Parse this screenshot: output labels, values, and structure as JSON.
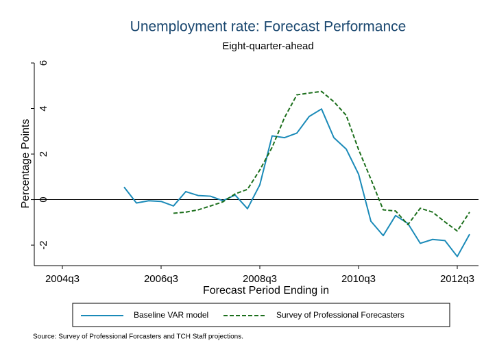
{
  "chart_data": {
    "type": "line",
    "title": "Unemployment rate: Forecast Performance",
    "subtitle": "Eight-quarter-ahead",
    "y_label": "Percentage Points",
    "x_label": "Forecast Period Ending in",
    "source": "Source: Survey of Professional Forcasters and TCH Staff projections.",
    "categories": [
      "2004q3",
      null,
      null,
      null,
      null,
      null,
      null,
      null,
      "2006q3",
      null,
      null,
      null,
      null,
      null,
      null,
      null,
      "2008q3",
      null,
      null,
      null,
      null,
      null,
      null,
      null,
      "2010q3",
      null,
      null,
      null,
      null,
      null,
      null,
      null,
      "2012q3",
      null
    ],
    "series": [
      {
        "name": "Baseline VAR model",
        "color": "#1a8ab8",
        "dash": false,
        "values": [
          null,
          null,
          null,
          null,
          null,
          0.55,
          -0.15,
          -0.05,
          -0.08,
          -0.28,
          0.35,
          0.18,
          0.15,
          -0.05,
          0.2,
          -0.4,
          0.65,
          2.8,
          2.72,
          2.92,
          3.65,
          3.98,
          2.72,
          2.22,
          1.12,
          -0.95,
          -1.58,
          -0.7,
          -1.05,
          -1.92,
          -1.75,
          -1.8,
          -2.5,
          -1.52
        ]
      },
      {
        "name": "Survey of Professional Forecasters",
        "color": "#1b6e1b",
        "dash": true,
        "values": [
          null,
          null,
          null,
          null,
          null,
          null,
          null,
          null,
          null,
          -0.6,
          -0.55,
          -0.45,
          -0.28,
          -0.1,
          0.25,
          0.45,
          1.3,
          2.3,
          3.6,
          4.6,
          4.68,
          4.75,
          4.3,
          3.7,
          2.2,
          0.9,
          -0.45,
          -0.5,
          -1.1,
          -0.38,
          -0.55,
          -0.98,
          -1.38,
          -0.55
        ]
      }
    ],
    "ylim": [
      -2.9,
      6
    ],
    "yticks": [
      -2,
      0,
      2,
      4,
      6
    ],
    "yline": 0,
    "grid": false,
    "legend": "bottom"
  }
}
